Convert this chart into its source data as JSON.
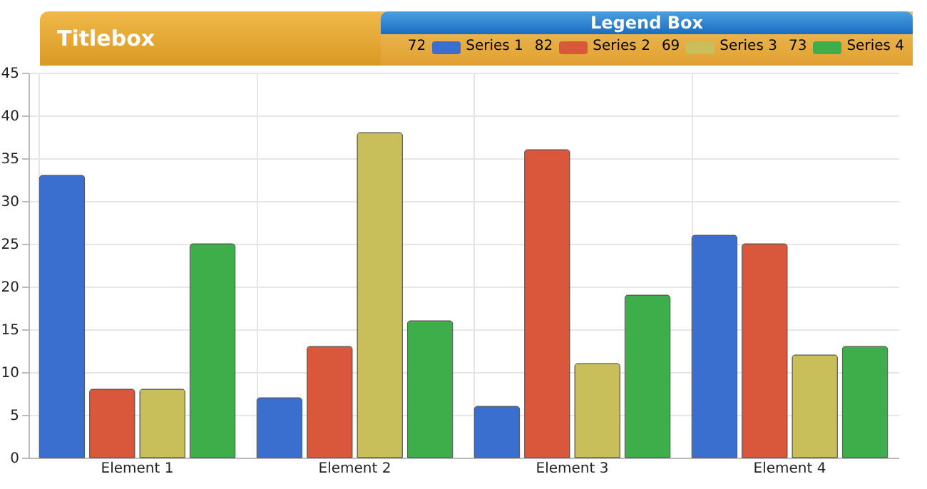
{
  "chart_data": {
    "type": "bar",
    "title": "Titlebox",
    "legend_title": "Legend Box",
    "legend": "top right",
    "grid": true,
    "categories": [
      "Element 1",
      "Element 2",
      "Element 3",
      "Element 4"
    ],
    "series": [
      {
        "name": "Series 1",
        "color": "#3a6fd0",
        "values": [
          33,
          7,
          6,
          26
        ]
      },
      {
        "name": "Series 2",
        "color": "#d9573a",
        "values": [
          8,
          13,
          36,
          25
        ]
      },
      {
        "name": "Series 3",
        "color": "#c8be5a",
        "values": [
          8,
          38,
          11,
          12
        ]
      },
      {
        "name": "Series 4",
        "color": "#3dae4a",
        "values": [
          25,
          16,
          19,
          13
        ]
      }
    ],
    "annotations": [
      "72",
      "82",
      "69",
      "73"
    ],
    "ylim": [
      0,
      45
    ],
    "yticks": [
      0,
      5,
      10,
      15,
      20,
      25,
      30,
      35,
      40,
      45
    ]
  }
}
